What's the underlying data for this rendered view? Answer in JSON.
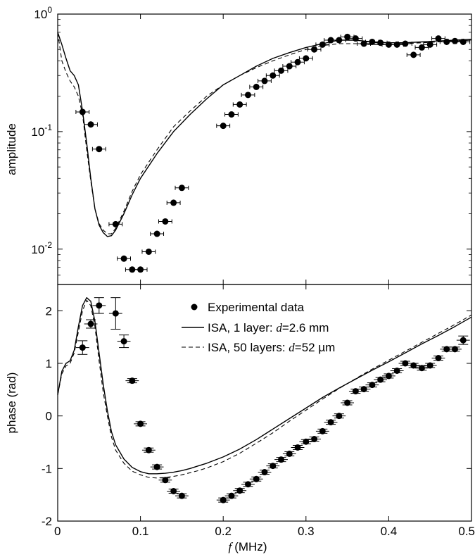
{
  "chart_data": [
    {
      "type": "scatter",
      "panel": "top",
      "title": "",
      "xlabel": "",
      "ylabel": "amplitude",
      "xlim": [
        0,
        0.5
      ],
      "ylim": [
        0.005,
        1
      ],
      "yscale": "log",
      "grid": false,
      "x_ticks": [
        0,
        0.1,
        0.2,
        0.3,
        0.4,
        0.5
      ],
      "y_ticks": [
        {
          "value": 1,
          "base": "10",
          "exp": "0"
        },
        {
          "value": 0.1,
          "base": "10",
          "exp": "-1"
        },
        {
          "value": 0.01,
          "base": "10",
          "exp": "-2"
        }
      ],
      "series": [
        {
          "name": "Experimental data",
          "style": "markers-with-errorbars",
          "color": "#000000",
          "x": [
            0.03,
            0.04,
            0.05,
            0.07,
            0.08,
            0.09,
            0.1,
            0.11,
            0.12,
            0.13,
            0.14,
            0.15,
            0.2,
            0.21,
            0.22,
            0.23,
            0.24,
            0.25,
            0.26,
            0.27,
            0.28,
            0.29,
            0.3,
            0.31,
            0.32,
            0.33,
            0.34,
            0.35,
            0.36,
            0.37,
            0.38,
            0.39,
            0.4,
            0.41,
            0.42,
            0.43,
            0.44,
            0.45,
            0.46,
            0.47,
            0.48,
            0.49
          ],
          "y": [
            0.147,
            0.115,
            0.071,
            0.0163,
            0.0083,
            0.0067,
            0.0067,
            0.0095,
            0.0135,
            0.0172,
            0.0248,
            0.0332,
            0.112,
            0.14,
            0.17,
            0.205,
            0.24,
            0.27,
            0.3,
            0.33,
            0.36,
            0.39,
            0.42,
            0.5,
            0.55,
            0.6,
            0.6,
            0.64,
            0.62,
            0.56,
            0.58,
            0.57,
            0.55,
            0.55,
            0.56,
            0.45,
            0.52,
            0.55,
            0.62,
            0.58,
            0.59,
            0.58
          ],
          "xerr": 0.008
        },
        {
          "name": "ISA, 1 layer: d=2.6 mm",
          "style": "solid",
          "x": [
            0,
            0.005,
            0.01,
            0.015,
            0.02,
            0.025,
            0.03,
            0.035,
            0.04,
            0.045,
            0.05,
            0.055,
            0.06,
            0.065,
            0.07,
            0.08,
            0.09,
            0.1,
            0.12,
            0.14,
            0.16,
            0.18,
            0.2,
            0.22,
            0.24,
            0.26,
            0.28,
            0.3,
            0.32,
            0.34,
            0.36,
            0.38,
            0.4,
            0.42,
            0.44,
            0.46,
            0.48,
            0.5
          ],
          "y": [
            0.7,
            0.55,
            0.42,
            0.33,
            0.3,
            0.25,
            0.15,
            0.08,
            0.04,
            0.022,
            0.016,
            0.0138,
            0.0128,
            0.013,
            0.0145,
            0.02,
            0.029,
            0.04,
            0.065,
            0.1,
            0.14,
            0.19,
            0.25,
            0.3,
            0.36,
            0.42,
            0.47,
            0.52,
            0.56,
            0.6,
            0.6,
            0.58,
            0.57,
            0.57,
            0.58,
            0.59,
            0.6,
            0.61
          ]
        },
        {
          "name": "ISA, 50 layers: d=52 µm",
          "style": "dashed",
          "x": [
            0,
            0.005,
            0.01,
            0.015,
            0.02,
            0.025,
            0.03,
            0.035,
            0.04,
            0.045,
            0.05,
            0.055,
            0.06,
            0.065,
            0.07,
            0.08,
            0.09,
            0.1,
            0.12,
            0.14,
            0.16,
            0.18,
            0.2,
            0.22,
            0.24,
            0.26,
            0.28,
            0.3,
            0.32,
            0.34,
            0.36,
            0.38,
            0.4,
            0.42,
            0.44,
            0.46,
            0.48,
            0.5
          ],
          "y": [
            0.7,
            0.4,
            0.32,
            0.27,
            0.24,
            0.2,
            0.14,
            0.07,
            0.038,
            0.022,
            0.0165,
            0.0145,
            0.0135,
            0.0135,
            0.015,
            0.021,
            0.031,
            0.043,
            0.07,
            0.11,
            0.15,
            0.2,
            0.25,
            0.3,
            0.35,
            0.4,
            0.45,
            0.5,
            0.54,
            0.56,
            0.56,
            0.55,
            0.55,
            0.56,
            0.57,
            0.58,
            0.59,
            0.6
          ]
        }
      ]
    },
    {
      "type": "scatter",
      "panel": "bottom",
      "title": "",
      "xlabel": "(MHz)",
      "xlabel_symbol": "f",
      "ylabel": "phase (rad)",
      "xlim": [
        0,
        0.5
      ],
      "ylim": [
        -2,
        2.5
      ],
      "grid": false,
      "x_ticks": [
        0,
        0.1,
        0.2,
        0.3,
        0.4,
        0.5
      ],
      "x_tick_labels": [
        "0",
        "0.1",
        "0.2",
        "0.3",
        "0.4",
        "0.5"
      ],
      "y_ticks": [
        -2,
        -1,
        0,
        1,
        2
      ],
      "y_tick_labels": [
        "-2",
        "-1",
        "0",
        "1",
        "2"
      ],
      "legend": {
        "placement": "top-center",
        "entries": [
          {
            "marker": "dot",
            "prefix": "Experimental data",
            "symbol": "",
            "suffix": ""
          },
          {
            "marker": "solid",
            "prefix": "ISA, 1 layer: ",
            "symbol": "d",
            "suffix": "=2.6 mm"
          },
          {
            "marker": "dashed",
            "prefix": "ISA, 50 layers: ",
            "symbol": "d",
            "suffix": "=52 µm"
          }
        ]
      },
      "series": [
        {
          "name": "Experimental data",
          "style": "markers-with-errorbars",
          "x": [
            0.03,
            0.04,
            0.05,
            0.07,
            0.08,
            0.09,
            0.1,
            0.11,
            0.12,
            0.13,
            0.14,
            0.15,
            0.2,
            0.21,
            0.22,
            0.23,
            0.24,
            0.25,
            0.26,
            0.27,
            0.28,
            0.29,
            0.3,
            0.31,
            0.32,
            0.33,
            0.34,
            0.35,
            0.36,
            0.37,
            0.38,
            0.39,
            0.4,
            0.41,
            0.42,
            0.43,
            0.44,
            0.45,
            0.46,
            0.47,
            0.48,
            0.49
          ],
          "y": [
            1.3,
            1.75,
            2.1,
            1.95,
            1.42,
            0.67,
            -0.15,
            -0.65,
            -0.97,
            -1.22,
            -1.43,
            -1.52,
            -1.6,
            -1.52,
            -1.42,
            -1.3,
            -1.2,
            -1.07,
            -0.95,
            -0.83,
            -0.72,
            -0.6,
            -0.49,
            -0.44,
            -0.29,
            -0.12,
            0.0,
            0.25,
            0.47,
            0.51,
            0.59,
            0.69,
            0.76,
            0.86,
            1.0,
            0.96,
            0.91,
            0.96,
            1.1,
            1.27,
            1.27,
            1.44
          ],
          "yerr": [
            0.13,
            0.08,
            0.15,
            0.3,
            0.12,
            0.04,
            0.04,
            0.04,
            0.04,
            0.04,
            0.04,
            0.04,
            0.04,
            0.04,
            0.04,
            0.04,
            0.04,
            0.04,
            0.04,
            0.04,
            0.04,
            0.04,
            0.04,
            0.04,
            0.04,
            0.04,
            0.04,
            0.04,
            0.04,
            0.04,
            0.04,
            0.04,
            0.04,
            0.04,
            0.04,
            0.04,
            0.04,
            0.04,
            0.04,
            0.04,
            0.04,
            0.08
          ],
          "xerr": 0.008
        },
        {
          "name": "ISA, 1 layer: d=2.6 mm",
          "style": "solid",
          "x": [
            0,
            0.005,
            0.01,
            0.015,
            0.02,
            0.025,
            0.03,
            0.035,
            0.04,
            0.045,
            0.05,
            0.055,
            0.06,
            0.065,
            0.07,
            0.08,
            0.09,
            0.1,
            0.11,
            0.12,
            0.13,
            0.14,
            0.15,
            0.16,
            0.17,
            0.18,
            0.2,
            0.22,
            0.24,
            0.26,
            0.28,
            0.3,
            0.32,
            0.34,
            0.36,
            0.38,
            0.4,
            0.42,
            0.44,
            0.46,
            0.48,
            0.5
          ],
          "y": [
            0.4,
            0.85,
            1.0,
            1.05,
            1.25,
            1.7,
            2.1,
            2.25,
            2.18,
            1.8,
            1.2,
            0.6,
            0.1,
            -0.3,
            -0.55,
            -0.82,
            -0.98,
            -1.06,
            -1.1,
            -1.1,
            -1.09,
            -1.07,
            -1.04,
            -1.0,
            -0.95,
            -0.9,
            -0.78,
            -0.63,
            -0.45,
            -0.25,
            -0.05,
            0.15,
            0.35,
            0.53,
            0.7,
            0.87,
            1.03,
            1.2,
            1.37,
            1.53,
            1.7,
            1.88
          ]
        },
        {
          "name": "ISA, 50 layers: d=52 µm",
          "style": "dashed",
          "x": [
            0,
            0.005,
            0.01,
            0.015,
            0.02,
            0.025,
            0.03,
            0.035,
            0.04,
            0.045,
            0.05,
            0.055,
            0.06,
            0.065,
            0.07,
            0.08,
            0.09,
            0.1,
            0.11,
            0.12,
            0.13,
            0.14,
            0.15,
            0.16,
            0.17,
            0.18,
            0.2,
            0.22,
            0.24,
            0.26,
            0.28,
            0.3,
            0.32,
            0.34,
            0.36,
            0.38,
            0.4,
            0.42,
            0.44,
            0.46,
            0.48,
            0.5
          ],
          "y": [
            0.4,
            0.8,
            0.95,
            1.0,
            1.2,
            1.6,
            2.0,
            2.2,
            2.1,
            1.7,
            1.05,
            0.45,
            0.0,
            -0.4,
            -0.65,
            -0.9,
            -1.05,
            -1.12,
            -1.17,
            -1.18,
            -1.17,
            -1.15,
            -1.12,
            -1.08,
            -1.04,
            -0.99,
            -0.87,
            -0.71,
            -0.52,
            -0.32,
            -0.1,
            0.11,
            0.32,
            0.52,
            0.71,
            0.89,
            1.06,
            1.23,
            1.4,
            1.57,
            1.74,
            1.92
          ]
        }
      ]
    }
  ]
}
